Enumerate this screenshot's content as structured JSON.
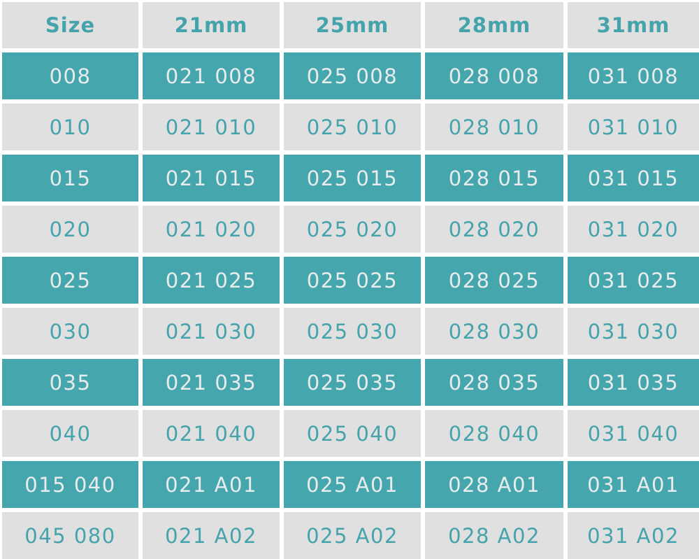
{
  "colors": {
    "teal": "#45a6ae",
    "gray": "#e0e0e0",
    "teal_text": "#45a3ab",
    "light_text": "#e9ecec"
  },
  "table": {
    "headers": [
      "Size",
      "21mm",
      "25mm",
      "28mm",
      "31mm"
    ],
    "rows": [
      [
        "008",
        "021 008",
        "025 008",
        "028 008",
        "031 008"
      ],
      [
        "010",
        "021 010",
        "025 010",
        "028 010",
        "031 010"
      ],
      [
        "015",
        "021 015",
        "025 015",
        "028 015",
        "031 015"
      ],
      [
        "020",
        "021 020",
        "025 020",
        "028 020",
        "031 020"
      ],
      [
        "025",
        "021 025",
        "025 025",
        "028 025",
        "031 025"
      ],
      [
        "030",
        "021 030",
        "025 030",
        "028 030",
        "031 030"
      ],
      [
        "035",
        "021 035",
        "025 035",
        "028 035",
        "031 035"
      ],
      [
        "040",
        "021 040",
        "025 040",
        "028 040",
        "031 040"
      ],
      [
        "015 040",
        "021 A01",
        "025 A01",
        "028 A01",
        "031 A01"
      ],
      [
        "045 080",
        "021 A02",
        "025 A02",
        "028 A02",
        "031 A02"
      ]
    ]
  }
}
